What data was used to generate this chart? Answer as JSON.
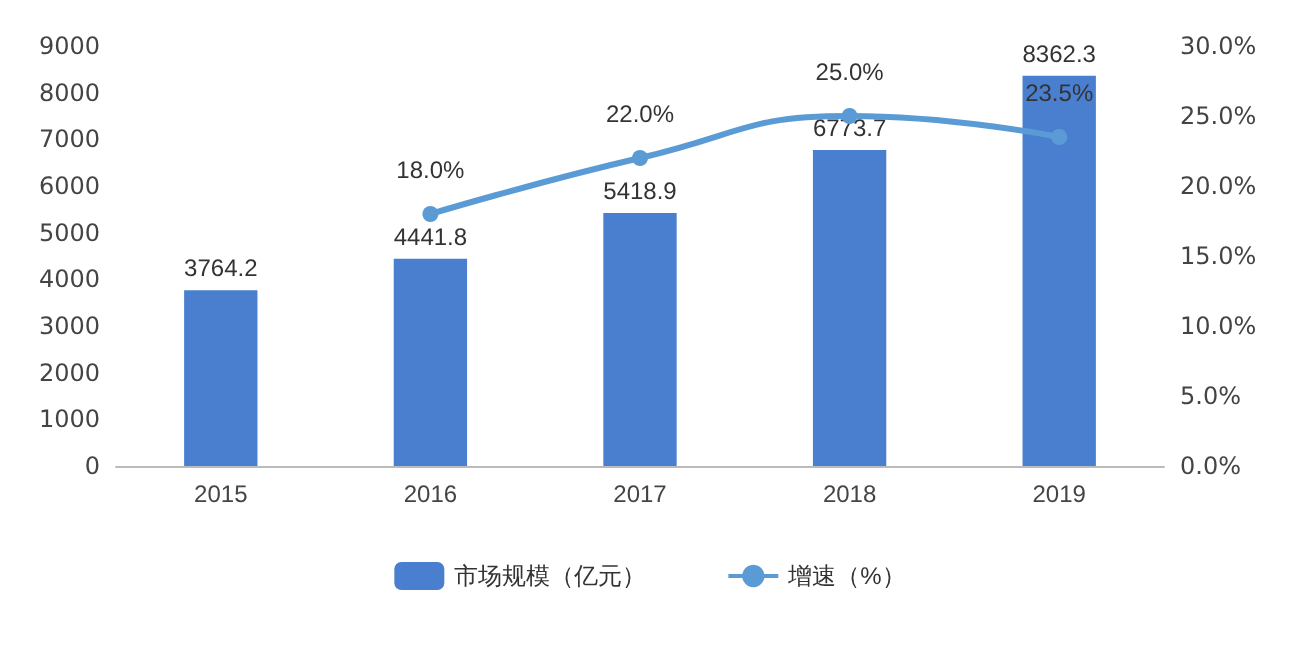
{
  "chart_data": {
    "type": "bar",
    "categories": [
      "2015",
      "2016",
      "2017",
      "2018",
      "2019"
    ],
    "series": [
      {
        "name": "市场规模（亿元）",
        "color": "#4a7fd0",
        "values": [
          3764.2,
          4441.8,
          5418.9,
          6773.7,
          8362.3
        ],
        "value_labels": [
          "3764.2",
          "4441.8",
          "5418.9",
          "6773.7",
          "8362.3"
        ]
      },
      {
        "name": "增速（%）",
        "type": "line",
        "axis": "y2",
        "color": "#5b9bd5",
        "marker": "circle",
        "values": [
          null,
          18.0,
          22.0,
          25.0,
          23.5
        ],
        "value_labels": [
          null,
          "18.0%",
          "22.0%",
          "25.0%",
          "23.5%"
        ]
      }
    ],
    "ylim": [
      0,
      9000
    ],
    "yticks": [
      0,
      1000,
      2000,
      3000,
      4000,
      5000,
      6000,
      7000,
      8000,
      9000
    ],
    "y2lim": [
      0,
      30
    ],
    "y2ticks": [
      {
        "value": 0,
        "label": "0.0%"
      },
      {
        "value": 5,
        "label": "5.0%"
      },
      {
        "value": 10,
        "label": "10.0%"
      },
      {
        "value": 15,
        "label": "15.0%"
      },
      {
        "value": 20,
        "label": "20.0%"
      },
      {
        "value": 25,
        "label": "25.0%"
      },
      {
        "value": 30,
        "label": "30.0%"
      }
    ],
    "legend": "bottom"
  }
}
